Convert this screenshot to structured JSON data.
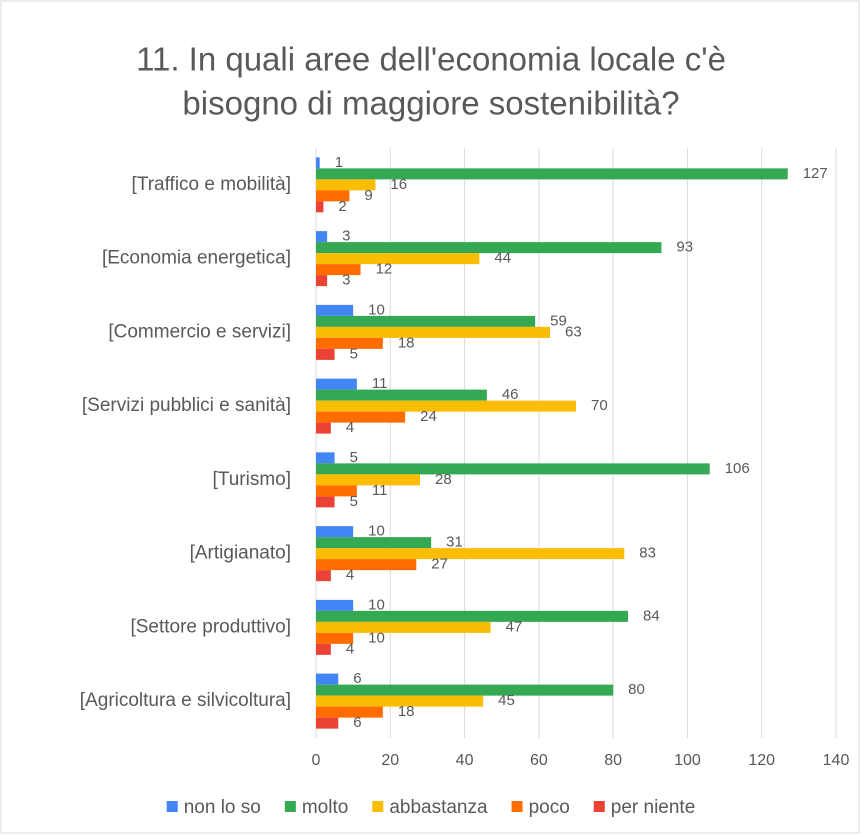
{
  "chart_data": {
    "type": "hbar",
    "title": [
      "11. In quali aree dell'economia locale c'è",
      "bisogno di maggiore sostenibilità?"
    ],
    "categories": [
      "[Traffico e mobilità]",
      "[Economia energetica]",
      "[Commercio e servizi]",
      "[Servizi pubblici e sanità]",
      "[Turismo]",
      "[Artigianato]",
      "[Settore produttivo]",
      "[Agricoltura e silvicoltura]"
    ],
    "series": [
      {
        "name": "non lo so",
        "color": "#4285f4",
        "values": [
          1,
          3,
          10,
          11,
          5,
          10,
          10,
          6
        ]
      },
      {
        "name": "molto",
        "color": "#34a853",
        "values": [
          127,
          93,
          59,
          46,
          106,
          31,
          84,
          80
        ]
      },
      {
        "name": "abbastanza",
        "color": "#fbbc04",
        "values": [
          16,
          44,
          63,
          70,
          28,
          83,
          47,
          45
        ]
      },
      {
        "name": "poco",
        "color": "#ff6d01",
        "values": [
          9,
          12,
          18,
          24,
          11,
          27,
          10,
          18
        ]
      },
      {
        "name": "per niente",
        "color": "#ea4335",
        "values": [
          2,
          3,
          5,
          4,
          5,
          4,
          4,
          6
        ]
      }
    ],
    "xlim": [
      0,
      140
    ],
    "xticks": [
      0,
      20,
      40,
      60,
      80,
      100,
      120,
      140
    ],
    "grid": true,
    "legend": "bottom"
  }
}
